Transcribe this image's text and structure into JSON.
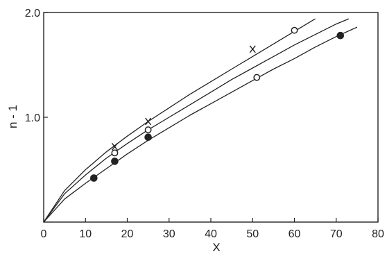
{
  "chart_data": {
    "type": "scatter",
    "title": "",
    "xlabel": "X",
    "ylabel": "n - 1",
    "xlim": [
      0,
      80
    ],
    "ylim": [
      0,
      2.0
    ],
    "x_ticks": [
      0,
      10,
      20,
      30,
      40,
      50,
      60,
      70,
      80
    ],
    "x_tick_labels": [
      "0",
      "10",
      "20",
      "30",
      "40",
      "50",
      "60",
      "70",
      "80"
    ],
    "y_ticks": [
      1.0,
      2.0
    ],
    "y_tick_labels": [
      "1.0",
      "2.0"
    ],
    "grid": false,
    "legend": "none",
    "series": [
      {
        "marker": "cross",
        "x": [
          17,
          25,
          50
        ],
        "y": [
          0.72,
          0.96,
          1.65
        ],
        "curve": {
          "x": [
            0,
            5,
            10,
            15,
            20,
            25,
            30,
            35,
            40,
            45,
            50,
            55,
            60,
            65
          ],
          "y": [
            0,
            0.3,
            0.5,
            0.67,
            0.82,
            0.96,
            1.09,
            1.22,
            1.34,
            1.46,
            1.58,
            1.7,
            1.82,
            1.94
          ]
        }
      },
      {
        "marker": "open-circle",
        "x": [
          17,
          25,
          51,
          60
        ],
        "y": [
          0.66,
          0.88,
          1.38,
          1.83
        ],
        "curve": {
          "x": [
            0,
            5,
            10,
            15,
            20,
            25,
            30,
            35,
            40,
            45,
            50,
            55,
            60,
            65,
            70,
            73
          ],
          "y": [
            0,
            0.27,
            0.45,
            0.61,
            0.75,
            0.88,
            1.0,
            1.12,
            1.24,
            1.36,
            1.47,
            1.58,
            1.69,
            1.79,
            1.89,
            1.94
          ]
        }
      },
      {
        "marker": "filled-circle",
        "x": [
          12,
          17,
          25,
          71
        ],
        "y": [
          0.42,
          0.58,
          0.81,
          1.78
        ],
        "curve": {
          "x": [
            0,
            5,
            10,
            15,
            20,
            25,
            30,
            35,
            40,
            45,
            50,
            55,
            60,
            65,
            70,
            75
          ],
          "y": [
            0,
            0.22,
            0.37,
            0.51,
            0.65,
            0.78,
            0.9,
            1.02,
            1.13,
            1.24,
            1.35,
            1.46,
            1.56,
            1.67,
            1.77,
            1.86
          ]
        }
      }
    ],
    "colors": {
      "ink": "#222222"
    }
  }
}
